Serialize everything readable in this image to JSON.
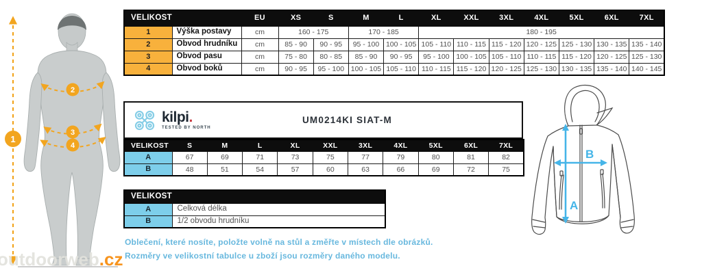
{
  "colors": {
    "cell_orange": "#F8B13C",
    "diagram_orange": "#F2A51F",
    "cell_blue": "#7DCEEA",
    "note_blue": "#68B8DE",
    "arrow_blue": "#45B5E8",
    "logo_blue": "#85CDE6",
    "watermark_orange": "#F7941E",
    "header_black": "#0D0D0D"
  },
  "body_diagram": {
    "measure_points": [
      "1",
      "2",
      "3",
      "4"
    ]
  },
  "size_table": {
    "corner_label": "VELIKOST",
    "columns": [
      "EU",
      "XS",
      "S",
      "M",
      "L",
      "XL",
      "XXL",
      "3XL",
      "4XL",
      "5XL",
      "6XL",
      "7XL"
    ],
    "rows": [
      {
        "num": "1",
        "label": "Výška postavy",
        "unit": "cm",
        "merged": [
          {
            "span": 2,
            "value": "160 - 175"
          },
          {
            "span": 2,
            "value": "170 - 185"
          },
          {
            "span": 7,
            "value": "180 - 195"
          }
        ]
      },
      {
        "num": "2",
        "label": "Obvod hrudníku",
        "unit": "cm",
        "values": [
          "85 - 90",
          "90 - 95",
          "95 - 100",
          "100 - 105",
          "105 - 110",
          "110 - 115",
          "115 - 120",
          "120 - 125",
          "125 - 130",
          "130 - 135",
          "135 - 140"
        ]
      },
      {
        "num": "3",
        "label": "Obvod pasu",
        "unit": "cm",
        "values": [
          "75 - 80",
          "80 - 85",
          "85 - 90",
          "90 - 95",
          "95 - 100",
          "100 - 105",
          "105 - 110",
          "110 - 115",
          "115 - 120",
          "120 - 125",
          "125 - 130"
        ]
      },
      {
        "num": "4",
        "label": "Obvod boků",
        "unit": "cm",
        "values": [
          "90 - 95",
          "95 - 100",
          "100 - 105",
          "105 - 110",
          "110 - 115",
          "115 - 120",
          "120 - 125",
          "125 - 130",
          "130 - 135",
          "135 - 140",
          "140 - 145"
        ]
      }
    ]
  },
  "product_panel": {
    "brand": "kilpi",
    "brand_dot": ".",
    "tagline": "Tested by North",
    "code": "UM0214KI SIAT-M"
  },
  "product_size_table": {
    "corner_label": "VELIKOST",
    "columns": [
      "S",
      "M",
      "L",
      "XL",
      "XXL",
      "3XL",
      "4XL",
      "5XL",
      "6XL",
      "7XL"
    ],
    "rows": [
      {
        "key": "A",
        "values": [
          "67",
          "69",
          "71",
          "73",
          "75",
          "77",
          "79",
          "80",
          "81",
          "82"
        ]
      },
      {
        "key": "B",
        "values": [
          "48",
          "51",
          "54",
          "57",
          "60",
          "63",
          "66",
          "69",
          "72",
          "75"
        ]
      }
    ]
  },
  "legend_table": {
    "header": "VELIKOST",
    "rows": [
      {
        "key": "A",
        "label": "Celková délka"
      },
      {
        "key": "B",
        "label": "1/2 obvodu hrudníku"
      }
    ]
  },
  "jacket_diagram": {
    "labels": {
      "length": "A",
      "chest": "B"
    }
  },
  "notes": {
    "line1": "Oblečení, které nosíte, položte volně na stůl a změřte v místech dle obrázků.",
    "line2": "Rozměry ve velikostní tabulce u zboží jsou rozměry daného modelu."
  },
  "watermark": {
    "name": "outdoorweb",
    "tld": ".cz"
  }
}
